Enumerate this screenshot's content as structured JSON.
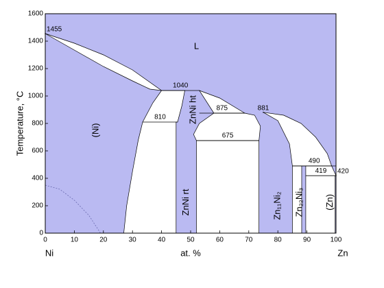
{
  "chart_data": {
    "type": "phase-diagram",
    "ylabel": "Temperature, °C",
    "xlabel": "at. %",
    "left_element": "Ni",
    "right_element": "Zn",
    "xlim": [
      0,
      100
    ],
    "ylim": [
      0,
      1600
    ],
    "xticks": [
      0,
      10,
      20,
      30,
      40,
      50,
      60,
      70,
      80,
      90,
      100
    ],
    "yticks": [
      0,
      200,
      400,
      600,
      800,
      1000,
      1200,
      1400,
      1600
    ],
    "single_phase_color": "#babaf2",
    "two_phase_color": "#ffffff",
    "regions": [
      {
        "x": [
          0,
          10,
          20,
          30,
          40,
          36,
          30,
          20,
          10
        ],
        "y": [
          1455,
          1385,
          1300,
          1190,
          1040,
          1050,
          1110,
          1215,
          1335
        ]
      },
      {
        "x": [
          27,
          28,
          30,
          32,
          33.5,
          37,
          40,
          48,
          47,
          45.5,
          45,
          45
        ],
        "y": [
          0,
          200,
          450,
          680,
          810,
          950,
          1040,
          1040,
          930,
          810,
          810,
          0
        ]
      },
      {
        "x": [
          52,
          52,
          73.5,
          73.5
        ],
        "y": [
          0,
          675,
          675,
          0
        ]
      },
      {
        "x": [
          52,
          51,
          53,
          58,
          68.6,
          72,
          74,
          73.5
        ],
        "y": [
          675,
          720,
          800,
          875,
          875,
          860,
          780,
          675
        ]
      },
      {
        "x": [
          53,
          60,
          68.6,
          58
        ],
        "y": [
          1040,
          985,
          875,
          875
        ]
      },
      {
        "x": [
          75,
          82,
          88,
          93,
          97,
          98.5,
          85,
          84,
          80
        ],
        "y": [
          881,
          860,
          800,
          700,
          580,
          490,
          490,
          650,
          820
        ]
      },
      {
        "x": [
          85,
          88.2,
          88.2,
          85
        ],
        "y": [
          0,
          0,
          490,
          490
        ]
      },
      {
        "x": [
          89.6,
          89.6,
          98.5,
          100,
          99.7,
          99.7
        ],
        "y": [
          0,
          490,
          490,
          420,
          419,
          0
        ]
      }
    ],
    "magnetic_transition": {
      "x": [
        0,
        5,
        10,
        15,
        19
      ],
      "y": [
        350,
        320,
        240,
        130,
        0
      ]
    },
    "isotherms": [
      {
        "temperature": 1455,
        "x": [
          0
        ]
      },
      {
        "temperature": 1040,
        "x": [
          40,
          53
        ]
      },
      {
        "temperature": 810,
        "x": [
          33.5,
          45.5
        ]
      },
      {
        "temperature": 875,
        "x": [
          53,
          68.6
        ]
      },
      {
        "temperature": 881,
        "x": [
          75
        ]
      },
      {
        "temperature": 675,
        "x": [
          52,
          73.5
        ]
      },
      {
        "temperature": 490,
        "x": [
          85,
          100
        ]
      },
      {
        "temperature": 419,
        "x": [
          89.6,
          100
        ]
      },
      {
        "temperature": 420,
        "x": [
          100
        ]
      }
    ],
    "phase_labels": [
      "L",
      "(Ni)",
      "ZnNi ht",
      "ZnNi rt",
      "Zn₁₁Ni₂",
      "Zn₂₂Ni₃",
      "(Zn)"
    ]
  }
}
